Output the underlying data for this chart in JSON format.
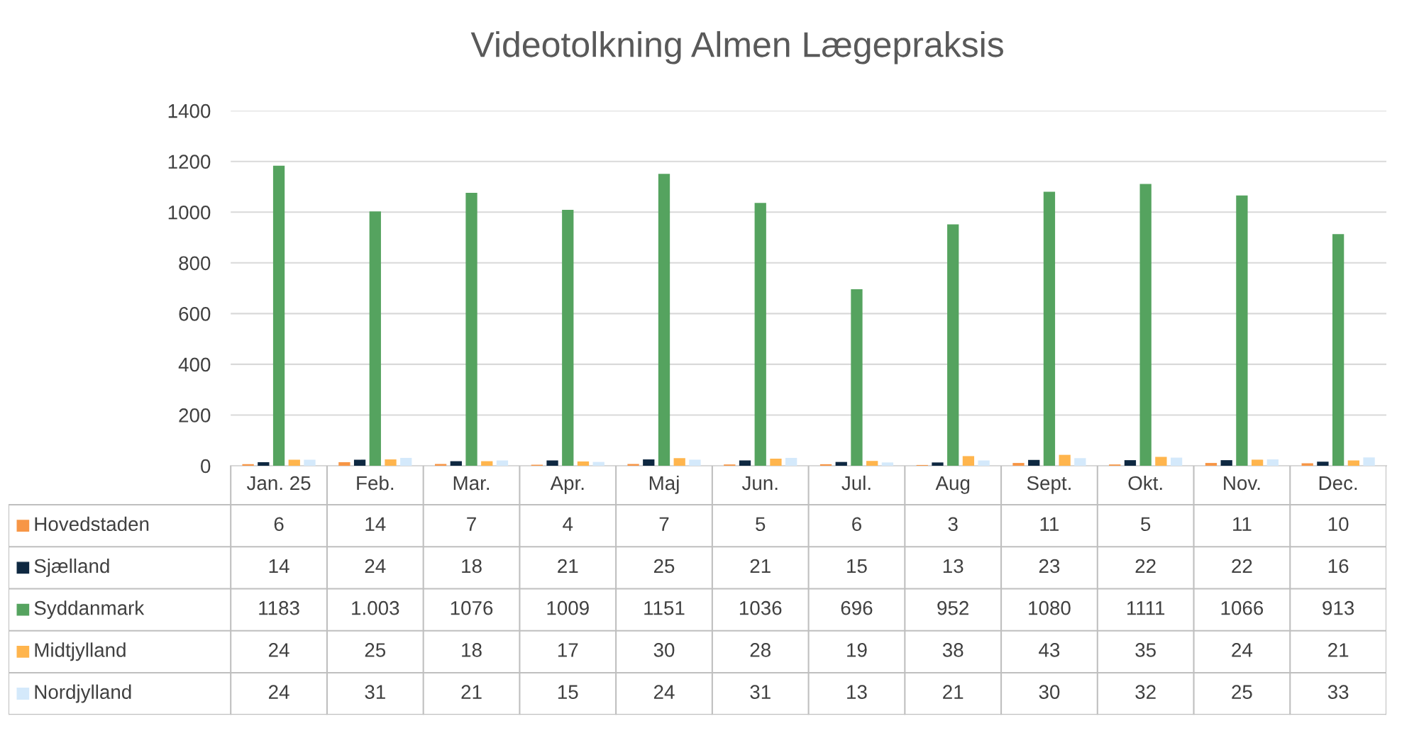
{
  "chart_data": {
    "type": "bar",
    "title": "Videotolkning Almen Lægepraksis",
    "categories": [
      "Jan. 25",
      "Feb.",
      "Mar.",
      "Apr.",
      "Maj",
      "Jun.",
      "Jul.",
      "Aug",
      "Sept.",
      "Okt.",
      "Nov.",
      "Dec."
    ],
    "series": [
      {
        "name": "Hovedstaden",
        "color": "#f79646",
        "values": [
          6,
          14,
          7,
          4,
          7,
          5,
          6,
          3,
          11,
          5,
          11,
          10
        ],
        "value_labels": [
          "6",
          "14",
          "7",
          "4",
          "7",
          "5",
          "6",
          "3",
          "11",
          "5",
          "11",
          "10"
        ]
      },
      {
        "name": "Sjælland",
        "color": "#0e2841",
        "values": [
          14,
          24,
          18,
          21,
          25,
          21,
          15,
          13,
          23,
          22,
          22,
          16
        ],
        "value_labels": [
          "14",
          "24",
          "18",
          "21",
          "25",
          "21",
          "15",
          "13",
          "23",
          "22",
          "22",
          "16"
        ]
      },
      {
        "name": "Syddanmark",
        "color": "#55a35f",
        "values": [
          1183,
          1003,
          1076,
          1009,
          1151,
          1036,
          696,
          952,
          1080,
          1111,
          1066,
          913
        ],
        "value_labels": [
          "1183",
          "1.003",
          "1076",
          "1009",
          "1151",
          "1036",
          "696",
          "952",
          "1080",
          "1111",
          "1066",
          "913"
        ]
      },
      {
        "name": "Midtjylland",
        "color": "#ffb54d",
        "values": [
          24,
          25,
          18,
          17,
          30,
          28,
          19,
          38,
          43,
          35,
          24,
          21
        ],
        "value_labels": [
          "24",
          "25",
          "18",
          "17",
          "30",
          "28",
          "19",
          "38",
          "43",
          "35",
          "24",
          "21"
        ]
      },
      {
        "name": "Nordjylland",
        "color": "#d4e9fb",
        "values": [
          24,
          31,
          21,
          15,
          24,
          31,
          13,
          21,
          30,
          32,
          25,
          33
        ],
        "value_labels": [
          "24",
          "31",
          "21",
          "15",
          "24",
          "31",
          "13",
          "21",
          "30",
          "32",
          "25",
          "33"
        ]
      }
    ],
    "ylim": [
      0,
      1400
    ],
    "yticks": [
      0,
      200,
      400,
      600,
      800,
      1000,
      1200,
      1400
    ],
    "grid": "y",
    "legend": "bottom left"
  }
}
